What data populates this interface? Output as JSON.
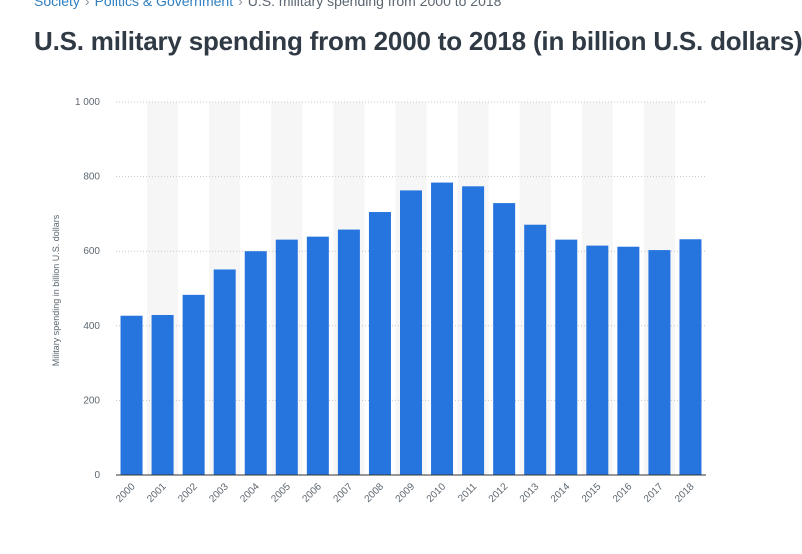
{
  "breadcrumb": {
    "items": [
      "Society",
      "Politics & Government",
      "U.S. military spending from 2000 to 2018"
    ],
    "separator": "›"
  },
  "header": {
    "title": "U.S. military spending from 2000 to 2018 (in billion U.S. dollars)"
  },
  "colors": {
    "bar": "#2674de",
    "stripe": "#f6f6f6",
    "grid": "#c8c8c8",
    "axis": "#333333",
    "link": "#2f7fc1"
  },
  "chart_data": {
    "type": "bar",
    "title": "U.S. military spending from 2000 to 2018 (in billion U.S. dollars)",
    "xlabel": "",
    "ylabel": "Military spending in billion U.S. dollars",
    "categories": [
      "2000",
      "2001",
      "2002",
      "2003",
      "2004",
      "2005",
      "2006",
      "2007",
      "2008",
      "2009",
      "2010",
      "2011",
      "2012",
      "2013",
      "2014",
      "2015",
      "2016",
      "2017",
      "2018"
    ],
    "values": [
      427,
      429,
      483,
      551,
      600,
      631,
      639,
      658,
      705,
      763,
      784,
      774,
      729,
      671,
      631,
      615,
      612,
      603,
      632
    ],
    "ylim": [
      0,
      1000
    ],
    "yticks": [
      0,
      200,
      400,
      600,
      800,
      1000
    ],
    "ytick_labels": [
      "0",
      "200",
      "400",
      "600",
      "800",
      "1 000"
    ],
    "grid": true
  }
}
